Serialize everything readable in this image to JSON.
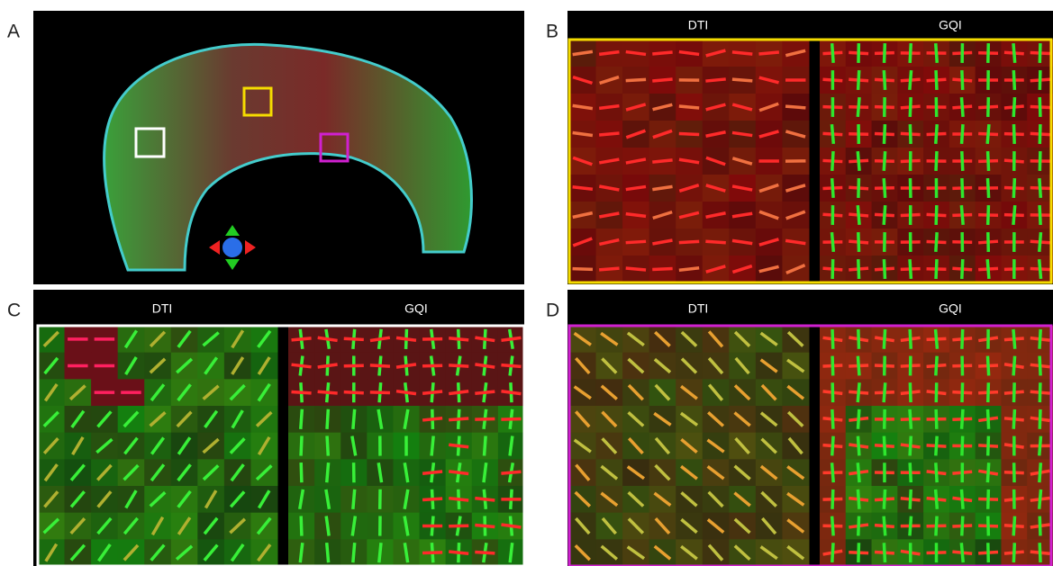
{
  "panels": [
    {
      "label": "A"
    },
    {
      "label": "B",
      "left_title": "DTI",
      "right_title": "GQI"
    },
    {
      "label": "C",
      "left_title": "DTI",
      "right_title": "GQI"
    },
    {
      "label": "D",
      "left_title": "DTI",
      "right_title": "GQI"
    }
  ]
}
